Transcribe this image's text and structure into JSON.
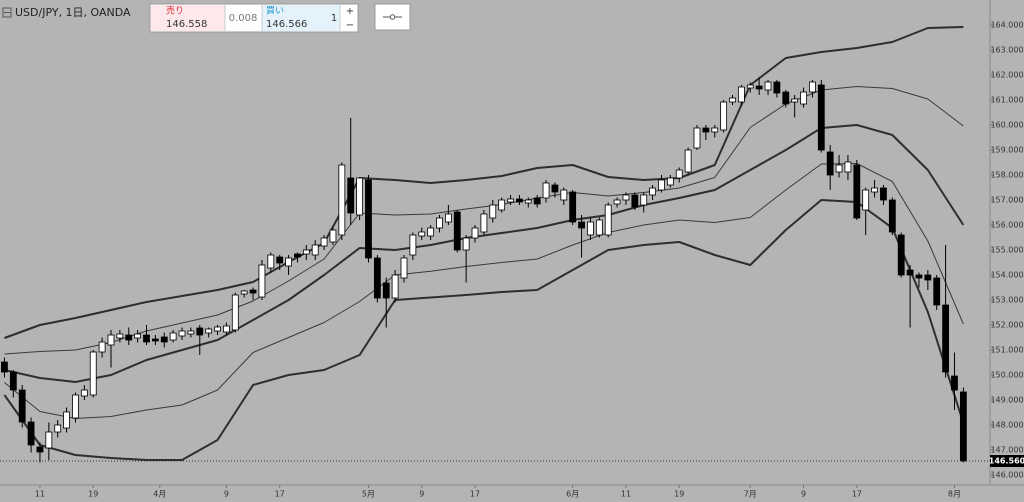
{
  "header": {
    "symbol": "USD/JPY, 1日, OANDA",
    "sell_label": "売り",
    "sell_price": "146.558",
    "spread": "0.008",
    "buy_label": "買い",
    "buy_price": "146.566",
    "quantity": "1",
    "plus": "+",
    "minus": "−"
  },
  "chart_data": {
    "type": "candlestick",
    "up_color": "#ffffff",
    "down_color": "#000000",
    "outline_color": "#000000",
    "xlim": [
      -0.5,
      111
    ],
    "ylim": [
      145.6,
      165.0
    ],
    "grid": false,
    "yticks": [
      {
        "value": 146,
        "label": "146.000"
      },
      {
        "value": 147,
        "label": "147.000"
      },
      {
        "value": 148,
        "label": "148.000"
      },
      {
        "value": 149,
        "label": "149.000"
      },
      {
        "value": 150,
        "label": "150.000"
      },
      {
        "value": 151,
        "label": "151.000"
      },
      {
        "value": 152,
        "label": "152.000"
      },
      {
        "value": 153,
        "label": "153.000"
      },
      {
        "value": 154,
        "label": "154.000"
      },
      {
        "value": 155,
        "label": "155.000"
      },
      {
        "value": 156,
        "label": "156.000"
      },
      {
        "value": 157,
        "label": "157.000"
      },
      {
        "value": 158,
        "label": "158.000"
      },
      {
        "value": 159,
        "label": "159.000"
      },
      {
        "value": 160,
        "label": "160.000"
      },
      {
        "value": 161,
        "label": "161.000"
      },
      {
        "value": 162,
        "label": "162.000"
      },
      {
        "value": 163,
        "label": "163.000"
      },
      {
        "value": 164,
        "label": "164.000"
      }
    ],
    "xticks": [
      {
        "value": 4,
        "label": "11"
      },
      {
        "value": 10,
        "label": "19"
      },
      {
        "value": 17.5,
        "label": "4月"
      },
      {
        "value": 25,
        "label": "9"
      },
      {
        "value": 31,
        "label": "17"
      },
      {
        "value": 41,
        "label": "5月"
      },
      {
        "value": 47,
        "label": "9"
      },
      {
        "value": 53,
        "label": "17"
      },
      {
        "value": 64,
        "label": "6月"
      },
      {
        "value": 70,
        "label": "11"
      },
      {
        "value": 76,
        "label": "19"
      },
      {
        "value": 84,
        "label": "7月"
      },
      {
        "value": 90,
        "label": "9"
      },
      {
        "value": 96,
        "label": "17"
      },
      {
        "value": 107,
        "label": "8月"
      }
    ],
    "last_price": {
      "value": 146.56,
      "label": "146.560"
    },
    "candles": {
      "open": [
        150.52,
        150.12,
        149.4,
        148.12,
        147.12,
        147.08,
        147.72,
        147.88,
        148.28,
        149.16,
        149.2,
        150.92,
        151.2,
        151.48,
        151.6,
        151.48,
        151.6,
        151.44,
        151.52,
        151.4,
        151.56,
        151.64,
        151.88,
        151.68,
        151.76,
        151.72,
        151.8,
        153.24,
        153.4,
        153.12,
        154.28,
        154.72,
        154.36,
        154.84,
        154.84,
        154.8,
        155.16,
        155.32,
        155.6,
        157.88,
        156.4,
        157.8,
        154.68,
        153.68,
        153.08,
        153.88,
        154.8,
        155.56,
        155.56,
        155.88,
        156.12,
        156.52,
        155.0,
        155.48,
        155.72,
        156.28,
        156.6,
        156.92,
        157.04,
        156.88,
        157.08,
        157.08,
        157.6,
        157.0,
        157.32,
        156.12,
        155.6,
        155.6,
        155.6,
        156.84,
        157.0,
        157.2,
        156.8,
        157.2,
        157.4,
        157.6,
        157.88,
        158.12,
        159.08,
        159.88,
        159.72,
        159.8,
        160.92,
        160.92,
        161.48,
        161.56,
        161.4,
        161.72,
        161.32,
        160.92,
        160.84,
        161.32,
        161.6,
        158.92,
        158.12,
        158.12,
        158.4,
        156.6,
        157.32,
        157.48,
        157.0,
        155.6,
        154.2,
        154.0,
        154.0,
        153.88,
        152.8,
        149.96,
        149.32
      ],
      "high": [
        150.7,
        150.2,
        149.6,
        148.3,
        147.3,
        148.1,
        148.2,
        148.7,
        149.3,
        149.6,
        151.0,
        151.5,
        151.8,
        151.8,
        151.9,
        151.8,
        152.0,
        151.6,
        151.7,
        151.8,
        151.9,
        151.9,
        152.0,
        151.9,
        152.0,
        152.1,
        153.3,
        153.4,
        153.5,
        154.6,
        154.9,
        154.8,
        154.8,
        154.9,
        155.2,
        155.4,
        155.6,
        155.9,
        158.5,
        160.28,
        157.9,
        158.0,
        154.8,
        153.9,
        154.2,
        154.8,
        155.7,
        155.9,
        156.0,
        156.4,
        156.8,
        156.6,
        155.6,
        156.0,
        156.6,
        157.0,
        157.1,
        157.2,
        157.2,
        157.1,
        157.2,
        157.8,
        157.7,
        157.5,
        157.4,
        156.4,
        156.3,
        156.3,
        156.9,
        157.1,
        157.3,
        157.3,
        157.3,
        157.6,
        158.0,
        158.0,
        158.3,
        159.1,
        160.0,
        160.0,
        160.0,
        161.0,
        161.2,
        161.6,
        161.7,
        161.9,
        161.8,
        161.8,
        161.4,
        161.2,
        161.5,
        161.8,
        161.8,
        159.2,
        158.8,
        158.8,
        158.6,
        157.5,
        157.8,
        157.6,
        157.1,
        155.7,
        154.4,
        154.1,
        154.2,
        154.0,
        155.2,
        150.9,
        149.5
      ],
      "low": [
        149.9,
        149.1,
        147.9,
        146.9,
        146.5,
        146.6,
        147.5,
        147.7,
        148.1,
        149.0,
        149.1,
        150.7,
        150.3,
        151.3,
        151.2,
        151.3,
        151.2,
        151.2,
        151.1,
        151.3,
        151.4,
        151.5,
        150.8,
        151.5,
        151.6,
        151.6,
        151.7,
        153.1,
        153.0,
        153.0,
        154.1,
        154.2,
        154.0,
        154.5,
        154.6,
        154.6,
        155.0,
        155.2,
        155.4,
        156.0,
        156.2,
        154.5,
        152.9,
        151.9,
        152.9,
        153.7,
        154.6,
        155.4,
        155.4,
        155.7,
        156.0,
        154.9,
        153.7,
        155.3,
        155.6,
        156.1,
        156.5,
        156.8,
        156.8,
        156.7,
        156.7,
        156.9,
        157.1,
        156.8,
        156.0,
        154.7,
        155.4,
        155.5,
        155.5,
        156.7,
        156.8,
        156.6,
        156.5,
        157.0,
        157.3,
        157.5,
        157.7,
        158.0,
        159.0,
        159.4,
        159.5,
        159.7,
        160.8,
        160.8,
        161.3,
        161.2,
        161.2,
        161.1,
        160.7,
        160.3,
        160.7,
        161.1,
        158.9,
        157.4,
        157.9,
        157.8,
        156.2,
        155.6,
        157.1,
        156.8,
        155.6,
        153.9,
        151.9,
        153.5,
        153.4,
        152.6,
        149.9,
        148.6,
        146.5
      ],
      "close": [
        150.12,
        149.4,
        148.12,
        147.2,
        146.92,
        147.72,
        148.0,
        148.52,
        149.2,
        149.4,
        150.92,
        151.32,
        151.6,
        151.64,
        151.4,
        151.64,
        151.32,
        151.36,
        151.32,
        151.68,
        151.76,
        151.76,
        151.6,
        151.84,
        151.92,
        151.96,
        153.2,
        153.36,
        153.28,
        154.4,
        154.8,
        154.48,
        154.68,
        154.72,
        155.0,
        155.2,
        155.48,
        155.8,
        158.4,
        156.48,
        157.88,
        154.68,
        153.08,
        153.08,
        154.0,
        154.68,
        155.6,
        155.72,
        155.88,
        156.28,
        156.44,
        155.0,
        155.48,
        155.88,
        156.44,
        156.8,
        157.0,
        157.04,
        156.92,
        157.0,
        156.84,
        157.68,
        157.32,
        157.4,
        156.12,
        155.88,
        156.12,
        156.2,
        156.8,
        157.0,
        157.2,
        156.72,
        157.2,
        157.48,
        157.8,
        157.88,
        158.2,
        159.0,
        159.88,
        159.72,
        159.88,
        160.92,
        161.08,
        161.52,
        161.6,
        161.44,
        161.72,
        161.28,
        160.84,
        161.04,
        161.32,
        161.72,
        159.0,
        158.0,
        158.4,
        158.52,
        156.28,
        157.4,
        157.48,
        157.0,
        155.72,
        154.0,
        154.0,
        153.88,
        153.8,
        152.8,
        150.12,
        149.4,
        146.56
      ]
    },
    "series": [
      {
        "color": "#2e2e2e",
        "line_width": 2,
        "x": [
          0,
          4,
          8,
          12,
          16,
          20,
          24,
          28,
          32,
          36,
          40,
          44,
          48,
          52,
          56,
          60,
          64,
          68,
          72,
          76,
          80,
          84,
          88,
          92,
          96,
          100,
          104,
          108
        ],
        "values": [
          151.48,
          152.0,
          152.28,
          152.6,
          152.92,
          153.16,
          153.4,
          153.72,
          154.52,
          155.28,
          157.88,
          157.8,
          157.68,
          157.8,
          157.96,
          158.28,
          158.4,
          157.92,
          157.8,
          157.88,
          158.4,
          161.6,
          162.68,
          162.92,
          163.08,
          163.32,
          163.88,
          163.92
        ]
      },
      {
        "color": "#3a3a3a",
        "line_width": 1,
        "x": [
          0,
          4,
          8,
          12,
          16,
          20,
          24,
          28,
          32,
          36,
          40,
          44,
          48,
          52,
          56,
          60,
          64,
          68,
          72,
          76,
          80,
          84,
          88,
          92,
          96,
          100,
          104,
          108
        ],
        "values": [
          150.84,
          150.94,
          151.0,
          151.3,
          151.76,
          152.08,
          152.4,
          152.96,
          153.76,
          154.64,
          156.48,
          156.4,
          156.44,
          156.64,
          156.82,
          157.08,
          157.3,
          157.16,
          157.3,
          157.48,
          157.9,
          159.9,
          160.84,
          161.4,
          161.54,
          161.46,
          161.04,
          159.96
        ]
      },
      {
        "color": "#2e2e2e",
        "line_width": 2,
        "x": [
          0,
          4,
          8,
          12,
          16,
          20,
          24,
          28,
          32,
          36,
          40,
          44,
          48,
          52,
          56,
          60,
          64,
          68,
          72,
          76,
          80,
          84,
          88,
          92,
          96,
          100,
          104,
          108
        ],
        "values": [
          150.2,
          149.88,
          149.72,
          150.0,
          150.6,
          151.0,
          151.4,
          152.2,
          153.0,
          154.0,
          155.08,
          155.0,
          155.2,
          155.48,
          155.68,
          155.88,
          156.2,
          156.4,
          156.8,
          157.08,
          157.4,
          158.2,
          159.0,
          159.88,
          160.0,
          159.6,
          158.2,
          156.0
        ]
      },
      {
        "color": "#3a3a3a",
        "line_width": 1,
        "x": [
          0,
          4,
          8,
          12,
          16,
          20,
          24,
          28,
          32,
          36,
          40,
          44,
          48,
          52,
          56,
          60,
          64,
          68,
          72,
          76,
          80,
          84,
          88,
          92,
          96,
          100,
          104,
          108
        ],
        "values": [
          149.7,
          148.54,
          148.26,
          148.34,
          148.6,
          148.8,
          149.4,
          150.9,
          151.5,
          152.1,
          152.94,
          154.0,
          154.15,
          154.34,
          154.5,
          154.64,
          155.2,
          155.7,
          156.0,
          156.2,
          156.1,
          156.3,
          157.4,
          158.44,
          158.46,
          157.74,
          155.36,
          152.04
        ]
      },
      {
        "color": "#2e2e2e",
        "line_width": 2,
        "x": [
          0,
          4,
          8,
          12,
          16,
          20,
          24,
          28,
          32,
          36,
          40,
          44,
          48,
          52,
          56,
          60,
          64,
          68,
          72,
          76,
          80,
          84,
          88,
          92,
          96,
          100,
          104,
          108
        ],
        "values": [
          149.2,
          147.2,
          146.8,
          146.68,
          146.6,
          146.6,
          147.4,
          149.6,
          150.0,
          150.2,
          150.8,
          153.0,
          153.1,
          153.2,
          153.32,
          153.4,
          154.2,
          155.0,
          155.2,
          155.32,
          154.8,
          154.4,
          155.8,
          157.0,
          156.92,
          155.88,
          152.52,
          148.08
        ]
      }
    ]
  }
}
